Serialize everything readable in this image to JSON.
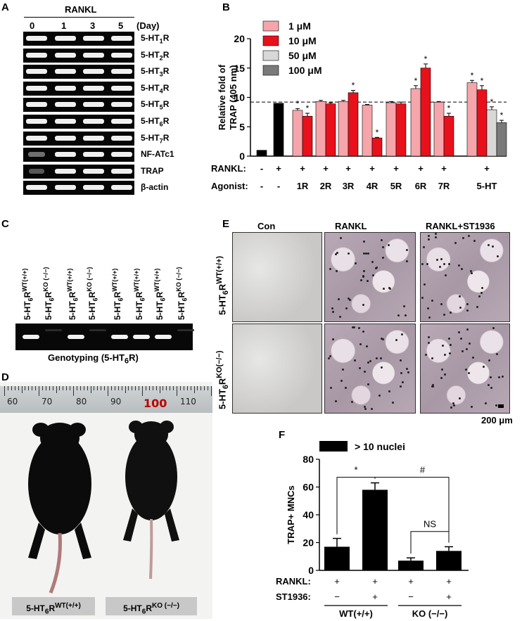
{
  "panel_letters": [
    "A",
    "B",
    "C",
    "D",
    "E",
    "F"
  ],
  "panelA": {
    "header": "RANKL",
    "day_label": "(Day)",
    "days": [
      "0",
      "1",
      "3",
      "5"
    ],
    "genes": [
      {
        "base": "5-HT",
        "sub": "1",
        "tail": "R"
      },
      {
        "base": "5-HT",
        "sub": "2",
        "tail": "R"
      },
      {
        "base": "5-HT",
        "sub": "3",
        "tail": "R"
      },
      {
        "base": "5-HT",
        "sub": "4",
        "tail": "R"
      },
      {
        "base": "5-HT",
        "sub": "5",
        "tail": "R"
      },
      {
        "base": "5-HT",
        "sub": "6",
        "tail": "R"
      },
      {
        "base": "5-HT",
        "sub": "7",
        "tail": "R"
      },
      {
        "base": "NF-ATc1",
        "sub": "",
        "tail": ""
      },
      {
        "base": "TRAP",
        "sub": "",
        "tail": ""
      },
      {
        "base": "β-actin",
        "sub": "",
        "tail": ""
      }
    ]
  },
  "panelC": {
    "lanes": [
      {
        "base": "5-HT",
        "sub": "6",
        "sup": "WT(+/+)"
      },
      {
        "base": "5-HT",
        "sub": "6",
        "sup": "KO (−/−)"
      },
      {
        "base": "5-HT",
        "sub": "6",
        "sup": "WT(+/+)"
      },
      {
        "base": "5-HT",
        "sub": "6",
        "sup": "KO (−/−)"
      },
      {
        "base": "5-HT",
        "sub": "6",
        "sup": "WT(+/+)"
      },
      {
        "base": "5-HT",
        "sub": "6",
        "sup": "WT(+/+)"
      },
      {
        "base": "5-HT",
        "sub": "6",
        "sup": "WT(+/+)"
      },
      {
        "base": "5-HT",
        "sub": "6",
        "sup": "KO (−/−)"
      }
    ],
    "caption": "Genotyping (5-HT",
    "caption_sub": "6",
    "caption_tail": "R)"
  },
  "panelD": {
    "ruler_numbers": [
      "60",
      "70",
      "80",
      "90",
      "100",
      "110"
    ],
    "label_wt": {
      "base": "5-HT",
      "sub": "6",
      "mid": "R",
      "sup": "WT(+/+)"
    },
    "label_ko": {
      "base": "5-HT",
      "sub": "6",
      "mid": "R",
      "sup": "KO (−/−)"
    }
  },
  "panelE": {
    "col_headers": [
      "Con",
      "RANKL",
      "RANKL+ST1936"
    ],
    "row_labels": [
      {
        "base": "5-HT",
        "sub": "6",
        "mid": "R",
        "sup": "WT(+/+)"
      },
      {
        "base": "5-HT",
        "sub": "6",
        "mid": "R",
        "sup": "KO(−/−)"
      }
    ],
    "scale": "200 μm"
  },
  "chart_data": [
    {
      "panel": "B",
      "type": "bar",
      "ylabel": "Relative fold of TRAP (405 nm)",
      "ylim": [
        0,
        20
      ],
      "yticks": [
        0,
        5,
        10,
        15,
        20
      ],
      "baseline": 9.2,
      "legend": [
        "1  μM",
        "10  μM",
        "50  μM",
        "100  μM"
      ],
      "legend_colors": [
        "#f6a5ab",
        "#e8101a",
        "#d8d8d8",
        "#7a7a7a"
      ],
      "row_labels": [
        "RANKL:",
        "Agonist:"
      ],
      "groups": [
        {
          "rankl": "-",
          "agonist": "-",
          "bars": [
            {
              "c": "#000000",
              "v": 1.0,
              "e": 0
            }
          ]
        },
        {
          "rankl": "+",
          "agonist": "-",
          "bars": [
            {
              "c": "#000000",
              "v": 9.0,
              "e": 0
            }
          ]
        },
        {
          "rankl": "+",
          "agonist": "1R",
          "bars": [
            {
              "c": "#f6a5ab",
              "v": 7.8,
              "e": 0.3,
              "s": "*"
            },
            {
              "c": "#e8101a",
              "v": 6.8,
              "e": 0.5,
              "s": "*"
            }
          ]
        },
        {
          "rankl": "+",
          "agonist": "2R",
          "bars": [
            {
              "c": "#f6a5ab",
              "v": 9.3,
              "e": 0.2
            },
            {
              "c": "#e8101a",
              "v": 8.9,
              "e": 0.2
            }
          ]
        },
        {
          "rankl": "+",
          "agonist": "3R",
          "bars": [
            {
              "c": "#f6a5ab",
              "v": 9.3,
              "e": 0.2
            },
            {
              "c": "#e8101a",
              "v": 10.8,
              "e": 0.4,
              "s": "*"
            }
          ]
        },
        {
          "rankl": "+",
          "agonist": "4R",
          "bars": [
            {
              "c": "#f6a5ab",
              "v": 8.7,
              "e": 0.1
            },
            {
              "c": "#e8101a",
              "v": 3.1,
              "e": 0.1,
              "s": "*"
            }
          ]
        },
        {
          "rankl": "+",
          "agonist": "5R",
          "bars": [
            {
              "c": "#f6a5ab",
              "v": 9.1,
              "e": 0.2
            },
            {
              "c": "#e8101a",
              "v": 8.9,
              "e": 0.3
            }
          ]
        },
        {
          "rankl": "+",
          "agonist": "6R",
          "bars": [
            {
              "c": "#f6a5ab",
              "v": 11.5,
              "e": 0.5,
              "s": "*"
            },
            {
              "c": "#e8101a",
              "v": 15.0,
              "e": 0.7,
              "s": "*"
            }
          ]
        },
        {
          "rankl": "+",
          "agonist": "7R",
          "bars": [
            {
              "c": "#f6a5ab",
              "v": 9.2,
              "e": 0.1
            },
            {
              "c": "#e8101a",
              "v": 6.8,
              "e": 0.5,
              "s": "*"
            }
          ]
        },
        {
          "rankl": "+",
          "agonist": "5-HT",
          "bars": [
            {
              "c": "#f6a5ab",
              "v": 12.5,
              "e": 0.4,
              "s": "*"
            },
            {
              "c": "#e8101a",
              "v": 11.3,
              "e": 0.7,
              "s": "*"
            },
            {
              "c": "#d8d8d8",
              "v": 7.9,
              "e": 0.5,
              "s": "*"
            },
            {
              "c": "#7a7a7a",
              "v": 5.7,
              "e": 0.4,
              "s": "*"
            }
          ]
        }
      ]
    },
    {
      "panel": "F",
      "type": "bar",
      "ylabel": "TRAP+ MNCs",
      "ylim": [
        0,
        80
      ],
      "yticks": [
        0,
        20,
        40,
        60,
        80
      ],
      "legend": [
        "> 10 nuclei"
      ],
      "values": [
        17,
        58,
        7,
        14
      ],
      "errors": [
        6,
        5,
        2,
        3
      ],
      "rankl": [
        "+",
        "+",
        "+",
        "+"
      ],
      "st1936": [
        "−",
        "+",
        "−",
        "+"
      ],
      "row_labels": [
        "RANKL:",
        "ST1936:"
      ],
      "group_labels": [
        "WT(+/+)",
        "KO (−/−)"
      ],
      "annotations": [
        "*",
        "#",
        "NS"
      ]
    }
  ]
}
